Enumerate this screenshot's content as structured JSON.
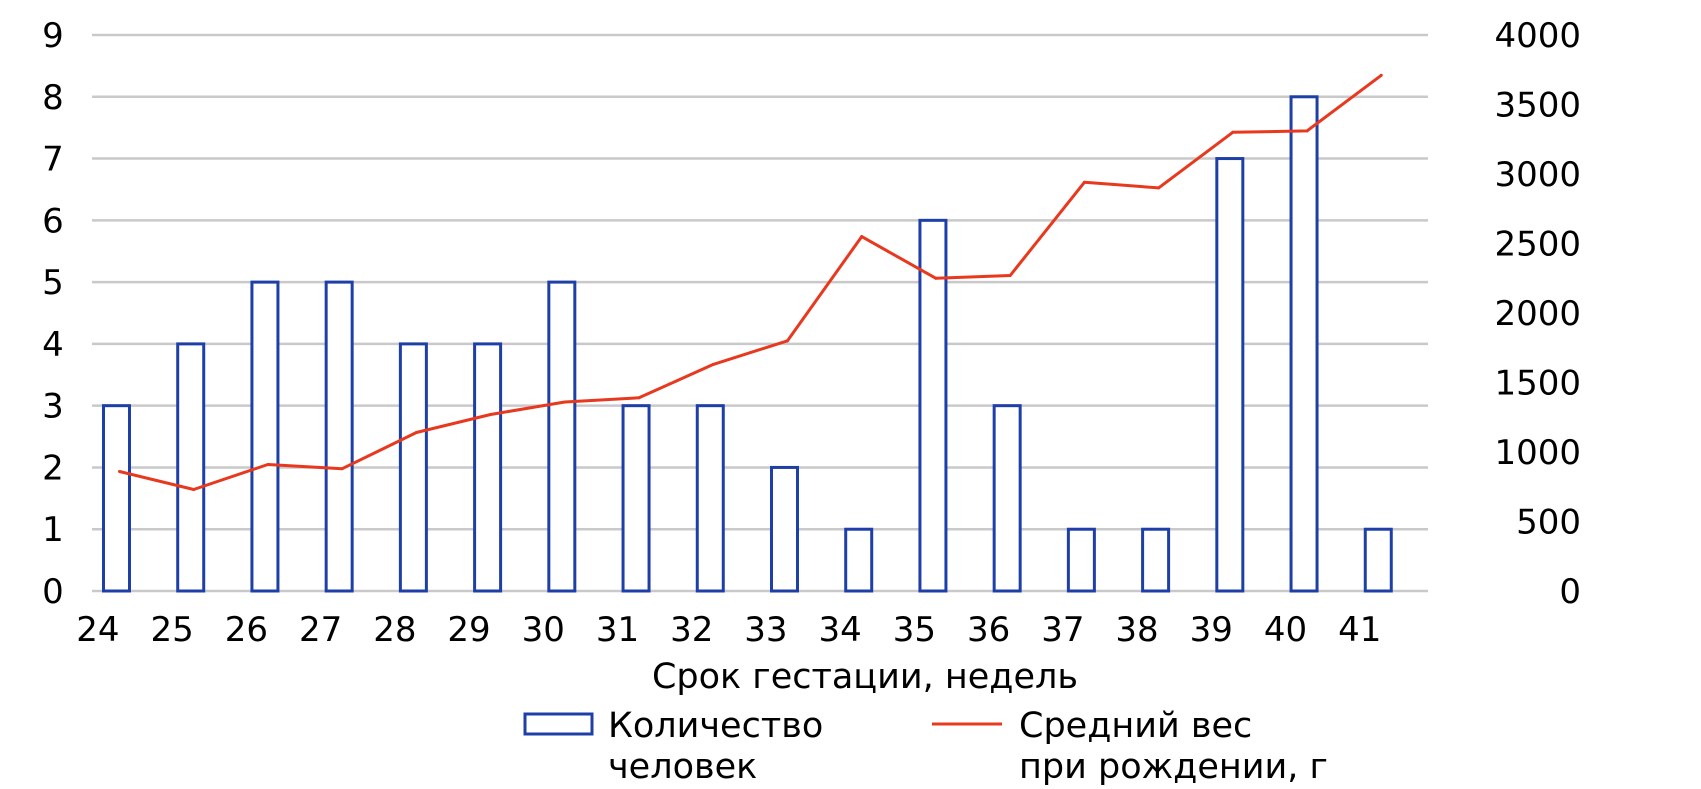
{
  "chart_data": {
    "type": "bar",
    "xlabel": "Срок гестации, недель",
    "categories": [
      "24",
      "25",
      "26",
      "27",
      "28",
      "29",
      "30",
      "31",
      "32",
      "33",
      "34",
      "35",
      "36",
      "37",
      "38",
      "39",
      "40",
      "41"
    ],
    "series": [
      {
        "name": "Количество человек",
        "type": "bar",
        "axis": "left",
        "color": "#1f3fa8",
        "values": [
          3,
          4,
          5,
          5,
          4,
          4,
          5,
          3,
          3,
          2,
          1,
          6,
          3,
          1,
          1,
          7,
          8,
          1
        ]
      },
      {
        "name": "Средний вес при рождении, г",
        "type": "line",
        "axis": "right",
        "color": "#e8381e",
        "values": [
          860,
          730,
          910,
          880,
          1140,
          1270,
          1360,
          1390,
          1630,
          1800,
          2550,
          2250,
          2270,
          2940,
          2900,
          3300,
          3310,
          3710
        ]
      }
    ],
    "ylim_left": [
      0,
      9
    ],
    "yticks_left": [
      "0",
      "1",
      "2",
      "3",
      "4",
      "5",
      "6",
      "7",
      "8",
      "9"
    ],
    "ylim_right": [
      0,
      4000
    ],
    "yticks_right": [
      "0",
      "500",
      "1000",
      "1500",
      "2000",
      "2500",
      "3000",
      "3500",
      "4000"
    ],
    "grid": true,
    "legend": {
      "position": "bottom",
      "bar_label_line1": "Количество",
      "bar_label_line2": "человек",
      "line_label_line1": "Средний вес",
      "line_label_line2": "при рождении, г"
    }
  }
}
